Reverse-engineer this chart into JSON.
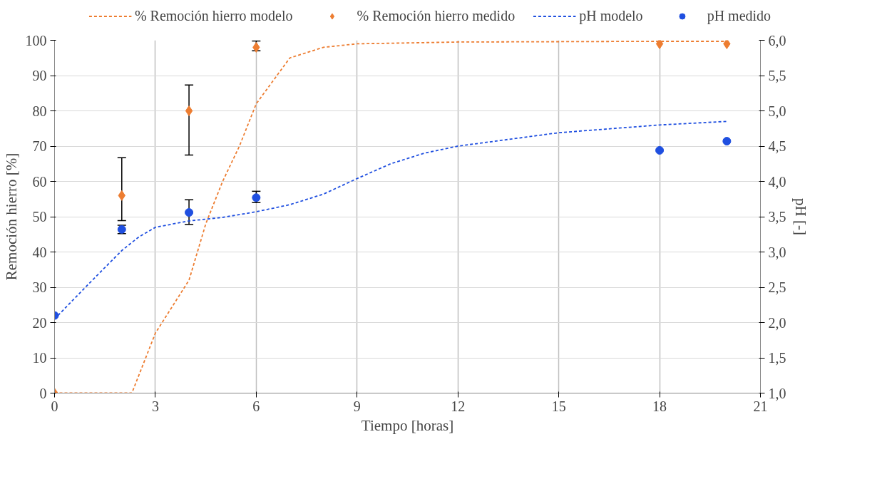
{
  "chart_data": {
    "type": "scatter",
    "xlabel": "Tiempo [horas]",
    "ylabel": "Remoción hierro [%]",
    "y2label": "pH [-]",
    "xlim": [
      0,
      21
    ],
    "xticks": [
      0,
      3,
      6,
      9,
      12,
      15,
      18,
      21
    ],
    "ylim": [
      0,
      100
    ],
    "yticks": [
      0,
      10,
      20,
      30,
      40,
      50,
      60,
      70,
      80,
      90,
      100
    ],
    "y2lim": [
      1,
      6
    ],
    "y2ticks": [
      {
        "value": 1,
        "label": "1,0"
      },
      {
        "value": 1.5,
        "label": "1,5"
      },
      {
        "value": 2,
        "label": "2,0"
      },
      {
        "value": 2.5,
        "label": "2,5"
      },
      {
        "value": 3,
        "label": "3,0"
      },
      {
        "value": 3.5,
        "label": "3,5"
      },
      {
        "value": 4,
        "label": "4,0"
      },
      {
        "value": 4.5,
        "label": "4,5"
      },
      {
        "value": 5,
        "label": "5,0"
      },
      {
        "value": 5.5,
        "label": "5,5"
      },
      {
        "value": 6,
        "label": "6,0"
      }
    ],
    "grid": true,
    "legend": "top",
    "series": [
      {
        "name": "% Remoción hierro modelo",
        "type": "line",
        "line_style": "dashed",
        "color": "#ed7d31",
        "x": [
          0,
          1,
          2,
          2.3,
          3,
          4,
          4.5,
          5,
          5.5,
          6,
          7,
          8,
          9,
          12,
          15,
          18,
          20
        ],
        "values": [
          0,
          0,
          0,
          0,
          17,
          32,
          48,
          60,
          70,
          82,
          95,
          98,
          99,
          99.5,
          99.6,
          99.7,
          99.7
        ]
      },
      {
        "name": "% Remoción hierro medido",
        "marker": "diamond",
        "color": "#ed7d31",
        "x": [
          0,
          2,
          4,
          6,
          18,
          20
        ],
        "values": [
          0,
          56,
          80,
          98,
          99,
          99
        ],
        "errors": [
          null,
          [
            48.9,
            66.7
          ],
          [
            67.5,
            87.3
          ],
          [
            97.0,
            99.8
          ],
          null,
          null
        ]
      },
      {
        "name": "pH modelo",
        "type": "line",
        "line_style": "dashed",
        "axis": "y2",
        "color": "#1f4fe0",
        "x": [
          0,
          1,
          2,
          2.5,
          3,
          4,
          5,
          6,
          7,
          8,
          9,
          10,
          11,
          12,
          15,
          18,
          20
        ],
        "values": [
          2.05,
          2.54,
          3.02,
          3.21,
          3.35,
          3.44,
          3.49,
          3.57,
          3.67,
          3.82,
          4.04,
          4.25,
          4.4,
          4.5,
          4.69,
          4.8,
          4.85
        ]
      },
      {
        "name": "pH medido",
        "marker": "circle",
        "axis": "y2",
        "color": "#1f4fe0",
        "x": [
          0,
          2,
          4,
          6,
          18,
          20
        ],
        "values": [
          2.1,
          3.32,
          3.56,
          3.77,
          4.44,
          4.57
        ],
        "errors": [
          null,
          [
            3.26,
            3.38
          ],
          [
            3.39,
            3.74
          ],
          [
            3.7,
            3.86
          ],
          null,
          null
        ]
      }
    ]
  }
}
